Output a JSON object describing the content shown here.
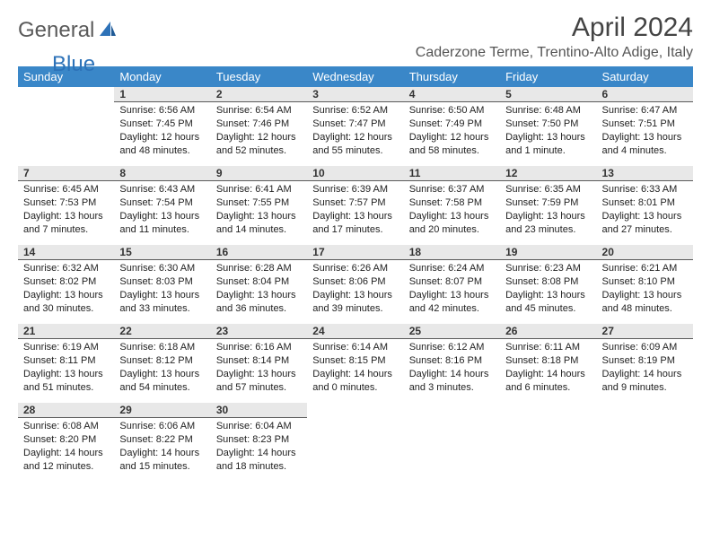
{
  "brand": {
    "part1": "General",
    "part2": "Blue"
  },
  "title": "April 2024",
  "location": "Caderzone Terme, Trentino-Alto Adige, Italy",
  "colors": {
    "header_bg": "#3a87c8",
    "header_text": "#ffffff",
    "daynum_bg": "#e8e8e8",
    "daynum_border": "#5a5a5a",
    "logo_blue": "#2d72b8",
    "logo_gray": "#5a5a5a",
    "body_text": "#222222"
  },
  "fonts": {
    "title_size": 30,
    "location_size": 16,
    "weekday_size": 13,
    "daynum_size": 12,
    "body_size": 11
  },
  "weekdays": [
    "Sunday",
    "Monday",
    "Tuesday",
    "Wednesday",
    "Thursday",
    "Friday",
    "Saturday"
  ],
  "weeks": [
    [
      {
        "n": "",
        "sunrise": "",
        "sunset": "",
        "daylight": ""
      },
      {
        "n": "1",
        "sunrise": "Sunrise: 6:56 AM",
        "sunset": "Sunset: 7:45 PM",
        "daylight": "Daylight: 12 hours and 48 minutes."
      },
      {
        "n": "2",
        "sunrise": "Sunrise: 6:54 AM",
        "sunset": "Sunset: 7:46 PM",
        "daylight": "Daylight: 12 hours and 52 minutes."
      },
      {
        "n": "3",
        "sunrise": "Sunrise: 6:52 AM",
        "sunset": "Sunset: 7:47 PM",
        "daylight": "Daylight: 12 hours and 55 minutes."
      },
      {
        "n": "4",
        "sunrise": "Sunrise: 6:50 AM",
        "sunset": "Sunset: 7:49 PM",
        "daylight": "Daylight: 12 hours and 58 minutes."
      },
      {
        "n": "5",
        "sunrise": "Sunrise: 6:48 AM",
        "sunset": "Sunset: 7:50 PM",
        "daylight": "Daylight: 13 hours and 1 minute."
      },
      {
        "n": "6",
        "sunrise": "Sunrise: 6:47 AM",
        "sunset": "Sunset: 7:51 PM",
        "daylight": "Daylight: 13 hours and 4 minutes."
      }
    ],
    [
      {
        "n": "7",
        "sunrise": "Sunrise: 6:45 AM",
        "sunset": "Sunset: 7:53 PM",
        "daylight": "Daylight: 13 hours and 7 minutes."
      },
      {
        "n": "8",
        "sunrise": "Sunrise: 6:43 AM",
        "sunset": "Sunset: 7:54 PM",
        "daylight": "Daylight: 13 hours and 11 minutes."
      },
      {
        "n": "9",
        "sunrise": "Sunrise: 6:41 AM",
        "sunset": "Sunset: 7:55 PM",
        "daylight": "Daylight: 13 hours and 14 minutes."
      },
      {
        "n": "10",
        "sunrise": "Sunrise: 6:39 AM",
        "sunset": "Sunset: 7:57 PM",
        "daylight": "Daylight: 13 hours and 17 minutes."
      },
      {
        "n": "11",
        "sunrise": "Sunrise: 6:37 AM",
        "sunset": "Sunset: 7:58 PM",
        "daylight": "Daylight: 13 hours and 20 minutes."
      },
      {
        "n": "12",
        "sunrise": "Sunrise: 6:35 AM",
        "sunset": "Sunset: 7:59 PM",
        "daylight": "Daylight: 13 hours and 23 minutes."
      },
      {
        "n": "13",
        "sunrise": "Sunrise: 6:33 AM",
        "sunset": "Sunset: 8:01 PM",
        "daylight": "Daylight: 13 hours and 27 minutes."
      }
    ],
    [
      {
        "n": "14",
        "sunrise": "Sunrise: 6:32 AM",
        "sunset": "Sunset: 8:02 PM",
        "daylight": "Daylight: 13 hours and 30 minutes."
      },
      {
        "n": "15",
        "sunrise": "Sunrise: 6:30 AM",
        "sunset": "Sunset: 8:03 PM",
        "daylight": "Daylight: 13 hours and 33 minutes."
      },
      {
        "n": "16",
        "sunrise": "Sunrise: 6:28 AM",
        "sunset": "Sunset: 8:04 PM",
        "daylight": "Daylight: 13 hours and 36 minutes."
      },
      {
        "n": "17",
        "sunrise": "Sunrise: 6:26 AM",
        "sunset": "Sunset: 8:06 PM",
        "daylight": "Daylight: 13 hours and 39 minutes."
      },
      {
        "n": "18",
        "sunrise": "Sunrise: 6:24 AM",
        "sunset": "Sunset: 8:07 PM",
        "daylight": "Daylight: 13 hours and 42 minutes."
      },
      {
        "n": "19",
        "sunrise": "Sunrise: 6:23 AM",
        "sunset": "Sunset: 8:08 PM",
        "daylight": "Daylight: 13 hours and 45 minutes."
      },
      {
        "n": "20",
        "sunrise": "Sunrise: 6:21 AM",
        "sunset": "Sunset: 8:10 PM",
        "daylight": "Daylight: 13 hours and 48 minutes."
      }
    ],
    [
      {
        "n": "21",
        "sunrise": "Sunrise: 6:19 AM",
        "sunset": "Sunset: 8:11 PM",
        "daylight": "Daylight: 13 hours and 51 minutes."
      },
      {
        "n": "22",
        "sunrise": "Sunrise: 6:18 AM",
        "sunset": "Sunset: 8:12 PM",
        "daylight": "Daylight: 13 hours and 54 minutes."
      },
      {
        "n": "23",
        "sunrise": "Sunrise: 6:16 AM",
        "sunset": "Sunset: 8:14 PM",
        "daylight": "Daylight: 13 hours and 57 minutes."
      },
      {
        "n": "24",
        "sunrise": "Sunrise: 6:14 AM",
        "sunset": "Sunset: 8:15 PM",
        "daylight": "Daylight: 14 hours and 0 minutes."
      },
      {
        "n": "25",
        "sunrise": "Sunrise: 6:12 AM",
        "sunset": "Sunset: 8:16 PM",
        "daylight": "Daylight: 14 hours and 3 minutes."
      },
      {
        "n": "26",
        "sunrise": "Sunrise: 6:11 AM",
        "sunset": "Sunset: 8:18 PM",
        "daylight": "Daylight: 14 hours and 6 minutes."
      },
      {
        "n": "27",
        "sunrise": "Sunrise: 6:09 AM",
        "sunset": "Sunset: 8:19 PM",
        "daylight": "Daylight: 14 hours and 9 minutes."
      }
    ],
    [
      {
        "n": "28",
        "sunrise": "Sunrise: 6:08 AM",
        "sunset": "Sunset: 8:20 PM",
        "daylight": "Daylight: 14 hours and 12 minutes."
      },
      {
        "n": "29",
        "sunrise": "Sunrise: 6:06 AM",
        "sunset": "Sunset: 8:22 PM",
        "daylight": "Daylight: 14 hours and 15 minutes."
      },
      {
        "n": "30",
        "sunrise": "Sunrise: 6:04 AM",
        "sunset": "Sunset: 8:23 PM",
        "daylight": "Daylight: 14 hours and 18 minutes."
      },
      {
        "n": "",
        "sunrise": "",
        "sunset": "",
        "daylight": ""
      },
      {
        "n": "",
        "sunrise": "",
        "sunset": "",
        "daylight": ""
      },
      {
        "n": "",
        "sunrise": "",
        "sunset": "",
        "daylight": ""
      },
      {
        "n": "",
        "sunrise": "",
        "sunset": "",
        "daylight": ""
      }
    ]
  ]
}
